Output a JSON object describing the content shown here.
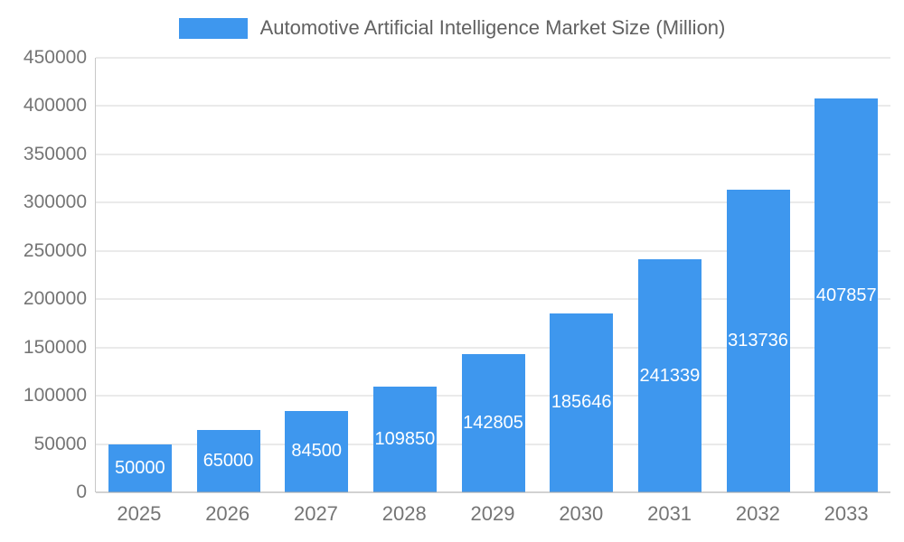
{
  "legend": {
    "title": "Automotive Artificial Intelligence Market Size (Million)"
  },
  "chart_data": {
    "type": "bar",
    "title": "Automotive Artificial Intelligence Market Size (Million)",
    "categories": [
      "2025",
      "2026",
      "2027",
      "2028",
      "2029",
      "2030",
      "2031",
      "2032",
      "2033"
    ],
    "values": [
      50000,
      65000,
      84500,
      109850,
      142805,
      185646,
      241339,
      313736,
      407857
    ],
    "xlabel": "",
    "ylabel": "",
    "ylim": [
      0,
      450000
    ],
    "ytick_step": 50000,
    "grid": true,
    "legend_position": "top",
    "bar_color": "#3e97ee",
    "value_label_color": "#ffffff",
    "axis_label_color": "#757575"
  }
}
